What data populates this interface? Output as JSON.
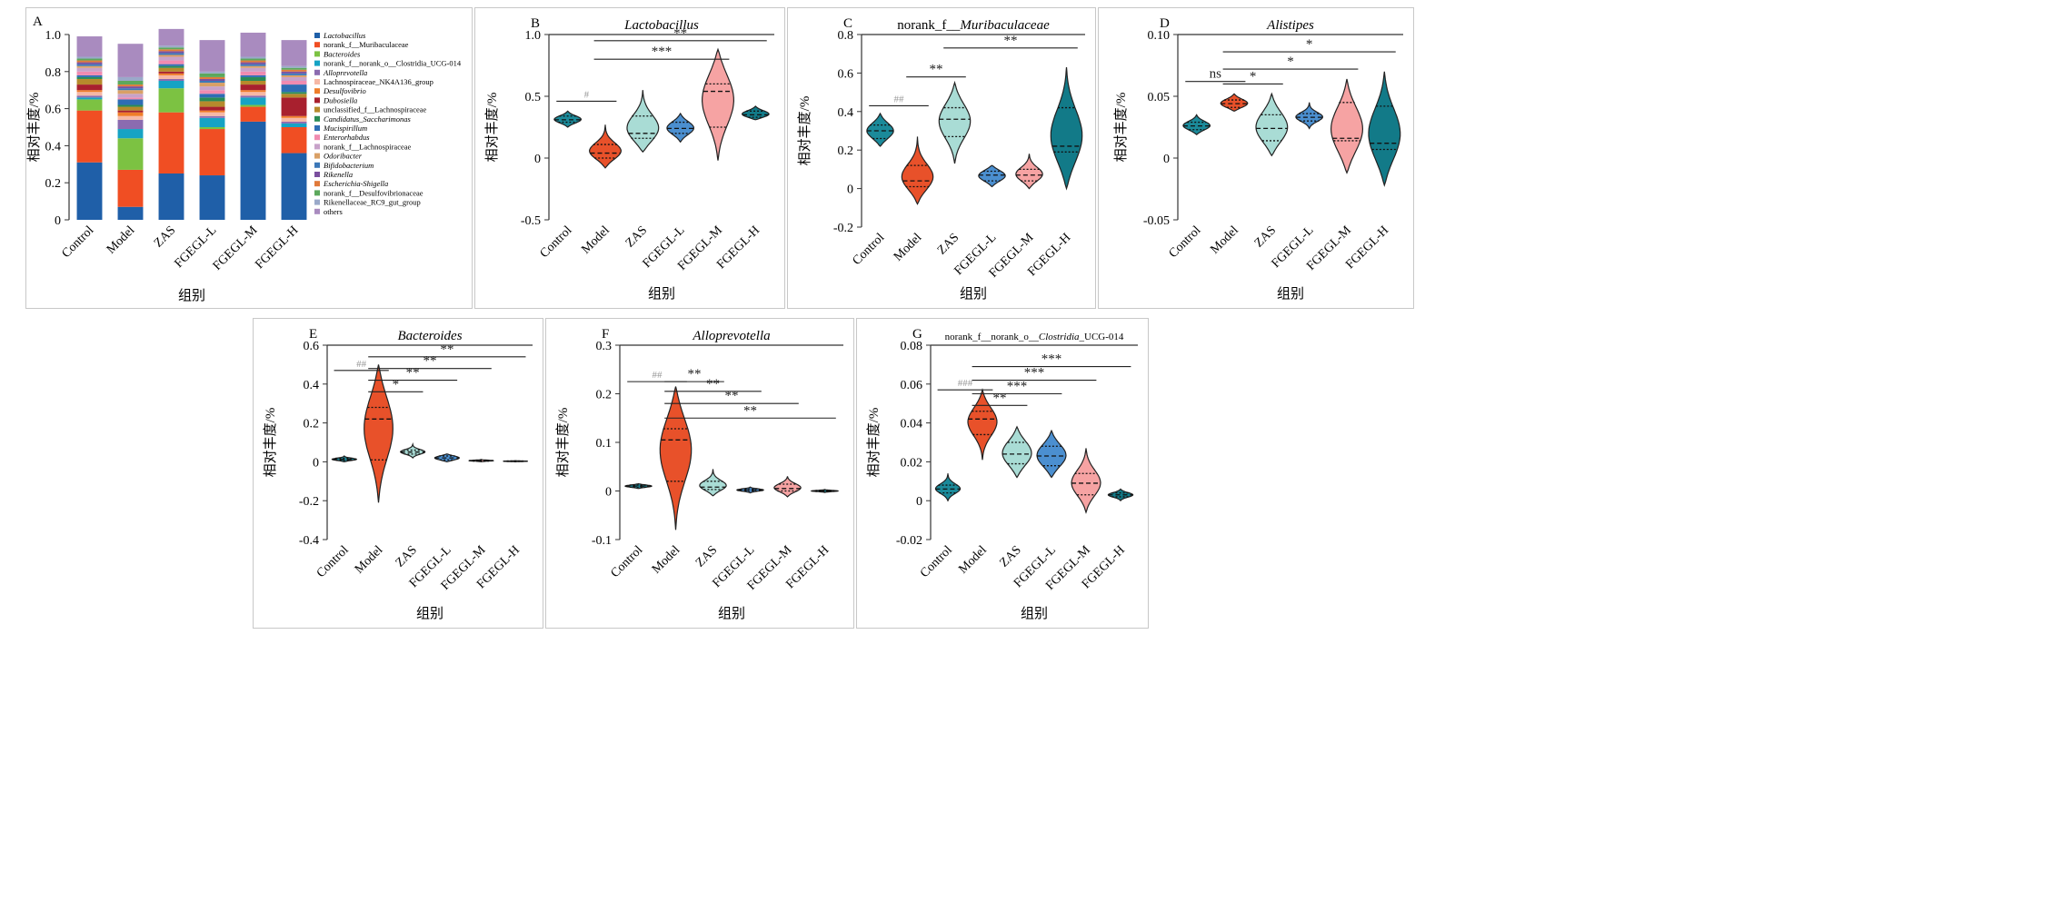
{
  "figure": {
    "groups": [
      "Control",
      "Model",
      "ZAS",
      "FGEGL-L",
      "FGEGL-M",
      "FGEGL-H"
    ],
    "xlabel": "组别",
    "ylabel": "相对丰度/%"
  },
  "chart_data": [
    {
      "panel": "A",
      "type": "bar",
      "stacked": true,
      "title": "",
      "xlabel": "组别",
      "ylabel": "相对丰度/%",
      "ylim": [
        0,
        1.0
      ],
      "yticks": [
        "0",
        "0.2",
        "0.4",
        "0.6",
        "0.8",
        "1.0"
      ],
      "categories": [
        "Control",
        "Model",
        "ZAS",
        "FGEGL-L",
        "FGEGL-M",
        "FGEGL-H"
      ],
      "legend_position": "right",
      "series": [
        {
          "name": "Lactobacillus",
          "italic": true,
          "color": "#1f5fa8",
          "values": [
            0.31,
            0.07,
            0.25,
            0.24,
            0.53,
            0.36
          ]
        },
        {
          "name": "norank_f__Muribaculaceae",
          "italic": false,
          "color": "#f04e23",
          "values": [
            0.28,
            0.2,
            0.33,
            0.25,
            0.08,
            0.14
          ]
        },
        {
          "name": "Bacteroides",
          "italic": true,
          "color": "#7cc242",
          "values": [
            0.06,
            0.17,
            0.13,
            0.01,
            0.01,
            0.0
          ]
        },
        {
          "name": "norank_f__norank_o__Clostridia_UCG-014",
          "italic": false,
          "color": "#16a3c4",
          "values": [
            0.01,
            0.05,
            0.04,
            0.05,
            0.04,
            0.02
          ]
        },
        {
          "name": "Alloprevotella",
          "italic": true,
          "color": "#8b6bb0",
          "values": [
            0.01,
            0.05,
            0.01,
            0.01,
            0.01,
            0.01
          ]
        },
        {
          "name": "Lachnospiraceae_NK4A136_group",
          "italic": false,
          "color": "#f6b8a6",
          "values": [
            0.02,
            0.02,
            0.02,
            0.02,
            0.02,
            0.02
          ]
        },
        {
          "name": "Desulfovibrio",
          "italic": true,
          "color": "#ef7d2a",
          "values": [
            0.01,
            0.02,
            0.01,
            0.01,
            0.01,
            0.01
          ]
        },
        {
          "name": "Dubosiella",
          "italic": true,
          "color": "#a8202e",
          "values": [
            0.03,
            0.01,
            0.01,
            0.02,
            0.03,
            0.1
          ]
        },
        {
          "name": "unclassified_f__Lachnospiraceae",
          "italic": false,
          "color": "#b68a2c",
          "values": [
            0.03,
            0.02,
            0.02,
            0.03,
            0.02,
            0.02
          ]
        },
        {
          "name": "Candidatus_Saccharimonas",
          "italic": true,
          "color": "#2a8b55",
          "values": [
            0.01,
            0.01,
            0.01,
            0.02,
            0.02,
            0.01
          ]
        },
        {
          "name": "Mucispirillum",
          "italic": true,
          "color": "#2e6db4",
          "values": [
            0.01,
            0.03,
            0.01,
            0.02,
            0.01,
            0.04
          ]
        },
        {
          "name": "Enterorhabdus",
          "italic": true,
          "color": "#f08bb0",
          "values": [
            0.02,
            0.01,
            0.02,
            0.02,
            0.02,
            0.02
          ]
        },
        {
          "name": "norank_f__Lachnospiraceae",
          "italic": false,
          "color": "#c7a2c9",
          "values": [
            0.02,
            0.02,
            0.02,
            0.02,
            0.02,
            0.02
          ]
        },
        {
          "name": "Odoribacter",
          "italic": true,
          "color": "#d9a066",
          "values": [
            0.01,
            0.02,
            0.01,
            0.02,
            0.01,
            0.01
          ]
        },
        {
          "name": "Bifidobacterium",
          "italic": true,
          "color": "#3c78b8",
          "values": [
            0.01,
            0.01,
            0.01,
            0.01,
            0.01,
            0.01
          ]
        },
        {
          "name": "Rikenella",
          "italic": true,
          "color": "#7a4f9e",
          "values": [
            0.01,
            0.01,
            0.01,
            0.01,
            0.01,
            0.01
          ]
        },
        {
          "name": "Escherichia-Shigella",
          "italic": true,
          "color": "#e07a3a",
          "values": [
            0.01,
            0.01,
            0.01,
            0.01,
            0.01,
            0.01
          ]
        },
        {
          "name": "norank_f__Desulfovibrionaceae",
          "italic": false,
          "color": "#5ca85c",
          "values": [
            0.01,
            0.02,
            0.01,
            0.02,
            0.01,
            0.01
          ]
        },
        {
          "name": "Rikenellaceae_RC9_gut_group",
          "italic": false,
          "color": "#9aa9c9",
          "values": [
            0.01,
            0.02,
            0.01,
            0.01,
            0.01,
            0.01
          ]
        },
        {
          "name": "others",
          "italic": false,
          "color": "#a98bbf",
          "values": [
            0.11,
            0.18,
            0.09,
            0.17,
            0.13,
            0.14
          ]
        }
      ]
    },
    {
      "panel": "B",
      "type": "violin",
      "title": "Lactobacillus",
      "title_italic": true,
      "xlabel": "组别",
      "ylabel": "相对丰度/%",
      "ylim": [
        -0.5,
        1.0
      ],
      "yticks": [
        "-0.5",
        "0",
        "0.5",
        "1.0"
      ],
      "categories": [
        "Control",
        "Model",
        "ZAS",
        "FGEGL-L",
        "FGEGL-M",
        "FGEGL-H"
      ],
      "groups": [
        {
          "min": 0.25,
          "q1": 0.29,
          "median": 0.31,
          "q3": 0.34,
          "max": 0.38,
          "color": "#1b8a9a"
        },
        {
          "min": -0.08,
          "q1": 0.0,
          "median": 0.04,
          "q3": 0.11,
          "max": 0.27,
          "color": "#e8512a"
        },
        {
          "min": 0.05,
          "q1": 0.16,
          "median": 0.2,
          "q3": 0.34,
          "max": 0.55,
          "color": "#a9dcd5"
        },
        {
          "min": 0.13,
          "q1": 0.2,
          "median": 0.24,
          "q3": 0.29,
          "max": 0.36,
          "color": "#4b8fd0"
        },
        {
          "min": -0.02,
          "q1": 0.25,
          "median": 0.54,
          "q3": 0.6,
          "max": 0.88,
          "color": "#f6a3a3"
        },
        {
          "min": 0.31,
          "q1": 0.33,
          "median": 0.35,
          "q3": 0.38,
          "max": 0.42,
          "color": "#127a88"
        }
      ],
      "annotations": [
        {
          "from": "Control",
          "to": "Model",
          "label": "#",
          "level": 0.46
        },
        {
          "from": "Model",
          "to": "FGEGL-M",
          "label": "***",
          "level": 0.8
        },
        {
          "from": "Model",
          "to": "FGEGL-H",
          "label": "**",
          "level": 0.95
        }
      ]
    },
    {
      "panel": "C",
      "type": "violin",
      "title": "norank_f__Muribaculaceae",
      "title_plain_prefix": "norank_f__",
      "title_italic_part": "Muribaculaceae",
      "xlabel": "组别",
      "ylabel": "相对丰度/%",
      "ylim": [
        -0.2,
        0.8
      ],
      "yticks": [
        "-0.2",
        "0",
        "0.2",
        "0.4",
        "0.6",
        "0.8"
      ],
      "categories": [
        "Control",
        "Model",
        "ZAS",
        "FGEGL-L",
        "FGEGL-M",
        "FGEGL-H"
      ],
      "groups": [
        {
          "min": 0.22,
          "q1": 0.26,
          "median": 0.3,
          "q3": 0.33,
          "max": 0.39,
          "color": "#1b8a9a"
        },
        {
          "min": -0.08,
          "q1": 0.01,
          "median": 0.04,
          "q3": 0.12,
          "max": 0.27,
          "color": "#e8512a"
        },
        {
          "min": 0.13,
          "q1": 0.27,
          "median": 0.36,
          "q3": 0.42,
          "max": 0.55,
          "color": "#a9dcd5"
        },
        {
          "min": 0.01,
          "q1": 0.04,
          "median": 0.07,
          "q3": 0.09,
          "max": 0.12,
          "color": "#4b8fd0"
        },
        {
          "min": 0.0,
          "q1": 0.04,
          "median": 0.07,
          "q3": 0.1,
          "max": 0.18,
          "color": "#f6a3a3"
        },
        {
          "min": 0.0,
          "q1": 0.19,
          "median": 0.22,
          "q3": 0.42,
          "max": 0.63,
          "color": "#127a88"
        }
      ],
      "annotations": [
        {
          "from": "Control",
          "to": "Model",
          "label": "##",
          "level": 0.43
        },
        {
          "from": "Model",
          "to": "ZAS",
          "label": "**",
          "level": 0.58
        },
        {
          "from": "ZAS",
          "to": "FGEGL-H",
          "label": "**",
          "level": 0.73
        }
      ]
    },
    {
      "panel": "D",
      "type": "violin",
      "title": "Alistipes",
      "title_italic": true,
      "xlabel": "组别",
      "ylabel": "相对丰度/%",
      "ylim": [
        -0.05,
        0.1
      ],
      "yticks": [
        "-0.05",
        "0",
        "0.05",
        "0.10"
      ],
      "categories": [
        "Control",
        "Model",
        "ZAS",
        "FGEGL-L",
        "FGEGL-M",
        "FGEGL-H"
      ],
      "groups": [
        {
          "min": 0.019,
          "q1": 0.023,
          "median": 0.026,
          "q3": 0.029,
          "max": 0.035,
          "color": "#1b8a9a"
        },
        {
          "min": 0.038,
          "q1": 0.041,
          "median": 0.044,
          "q3": 0.047,
          "max": 0.052,
          "color": "#e8512a"
        },
        {
          "min": 0.002,
          "q1": 0.014,
          "median": 0.024,
          "q3": 0.035,
          "max": 0.052,
          "color": "#a9dcd5"
        },
        {
          "min": 0.024,
          "q1": 0.03,
          "median": 0.033,
          "q3": 0.036,
          "max": 0.045,
          "color": "#4b8fd0"
        },
        {
          "min": -0.012,
          "q1": 0.014,
          "median": 0.016,
          "q3": 0.045,
          "max": 0.064,
          "color": "#f6a3a3"
        },
        {
          "min": -0.022,
          "q1": 0.007,
          "median": 0.012,
          "q3": 0.042,
          "max": 0.07,
          "color": "#127a88"
        }
      ],
      "annotations": [
        {
          "from": "Control",
          "to": "Model",
          "label": "ns",
          "level": 0.062
        },
        {
          "from": "Model",
          "to": "ZAS",
          "label": "*",
          "level": 0.06
        },
        {
          "from": "Model",
          "to": "FGEGL-M",
          "label": "*",
          "level": 0.072
        },
        {
          "from": "Model",
          "to": "FGEGL-H",
          "label": "*",
          "level": 0.086
        }
      ]
    },
    {
      "panel": "E",
      "type": "violin",
      "title": "Bacteroides",
      "title_italic": true,
      "xlabel": "组别",
      "ylabel": "相对丰度/%",
      "ylim": [
        -0.4,
        0.6
      ],
      "yticks": [
        "-0.4",
        "-0.2",
        "0",
        "0.2",
        "0.4",
        "0.6"
      ],
      "categories": [
        "Control",
        "Model",
        "ZAS",
        "FGEGL-L",
        "FGEGL-M",
        "FGEGL-H"
      ],
      "groups": [
        {
          "min": 0.0,
          "q1": 0.008,
          "median": 0.012,
          "q3": 0.018,
          "max": 0.03,
          "color": "#1b8a9a"
        },
        {
          "min": -0.21,
          "q1": 0.01,
          "median": 0.22,
          "q3": 0.28,
          "max": 0.5,
          "color": "#e8512a"
        },
        {
          "min": 0.02,
          "q1": 0.04,
          "median": 0.05,
          "q3": 0.06,
          "max": 0.09,
          "color": "#a9dcd5"
        },
        {
          "min": 0.0,
          "q1": 0.01,
          "median": 0.02,
          "q3": 0.03,
          "max": 0.04,
          "color": "#4b8fd0"
        },
        {
          "min": 0.0,
          "q1": 0.004,
          "median": 0.006,
          "q3": 0.008,
          "max": 0.012,
          "color": "#f6a3a3"
        },
        {
          "min": 0.0,
          "q1": 0.002,
          "median": 0.003,
          "q3": 0.004,
          "max": 0.006,
          "color": "#127a88"
        }
      ],
      "annotations": [
        {
          "from": "Control",
          "to": "Model",
          "label": "##",
          "level": 0.47
        },
        {
          "from": "Model",
          "to": "ZAS",
          "label": "*",
          "level": 0.36
        },
        {
          "from": "Model",
          "to": "FGEGL-L",
          "label": "**",
          "level": 0.42
        },
        {
          "from": "Model",
          "to": "FGEGL-M",
          "label": "**",
          "level": 0.48
        },
        {
          "from": "Model",
          "to": "FGEGL-H",
          "label": "**",
          "level": 0.54
        }
      ]
    },
    {
      "panel": "F",
      "type": "violin",
      "title": "Alloprevotella",
      "title_italic": true,
      "xlabel": "组别",
      "ylabel": "相对丰度/%",
      "ylim": [
        -0.1,
        0.3
      ],
      "yticks": [
        "-0.1",
        "0",
        "0.1",
        "0.2",
        "0.3"
      ],
      "categories": [
        "Control",
        "Model",
        "ZAS",
        "FGEGL-L",
        "FGEGL-M",
        "FGEGL-H"
      ],
      "groups": [
        {
          "min": 0.005,
          "q1": 0.008,
          "median": 0.01,
          "q3": 0.012,
          "max": 0.015,
          "color": "#1b8a9a"
        },
        {
          "min": -0.08,
          "q1": 0.02,
          "median": 0.105,
          "q3": 0.128,
          "max": 0.215,
          "color": "#e8512a"
        },
        {
          "min": -0.01,
          "q1": 0.003,
          "median": 0.008,
          "q3": 0.02,
          "max": 0.045,
          "color": "#a9dcd5"
        },
        {
          "min": -0.004,
          "q1": 0.0,
          "median": 0.002,
          "q3": 0.004,
          "max": 0.008,
          "color": "#4b8fd0"
        },
        {
          "min": -0.012,
          "q1": 0.0,
          "median": 0.005,
          "q3": 0.014,
          "max": 0.03,
          "color": "#f6a3a3"
        },
        {
          "min": -0.003,
          "q1": -0.001,
          "median": 0.0,
          "q3": 0.001,
          "max": 0.003,
          "color": "#127a88"
        }
      ],
      "annotations": [
        {
          "from": "Control",
          "to": "Model",
          "label": "##",
          "level": 0.225
        },
        {
          "from": "ZAS",
          "to": "Model",
          "label": "**",
          "level": 0.225
        },
        {
          "from": "Model",
          "to": "FGEGL-L",
          "label": "**",
          "level": 0.205
        },
        {
          "from": "Model",
          "to": "FGEGL-M",
          "label": "**",
          "level": 0.18
        },
        {
          "from": "Model",
          "to": "FGEGL-H",
          "label": "**",
          "level": 0.15
        }
      ]
    },
    {
      "panel": "G",
      "type": "violin",
      "title": "norank_f__norank_o__Clostridia_UCG-014",
      "title_plain_prefix": "norank_f__norank_o__",
      "title_italic_part": "Clostridia",
      "title_plain_suffix": "_UCG-014",
      "xlabel": "组别",
      "ylabel": "相对丰度/%",
      "ylim": [
        -0.02,
        0.08
      ],
      "yticks": [
        "-0.02",
        "0",
        "0.02",
        "0.04",
        "0.06",
        "0.08"
      ],
      "categories": [
        "Control",
        "Model",
        "ZAS",
        "FGEGL-L",
        "FGEGL-M",
        "FGEGL-H"
      ],
      "groups": [
        {
          "min": 0.0,
          "q1": 0.004,
          "median": 0.006,
          "q3": 0.008,
          "max": 0.014,
          "color": "#1b8a9a"
        },
        {
          "min": 0.021,
          "q1": 0.034,
          "median": 0.042,
          "q3": 0.046,
          "max": 0.057,
          "color": "#e8512a"
        },
        {
          "min": 0.012,
          "q1": 0.019,
          "median": 0.024,
          "q3": 0.03,
          "max": 0.038,
          "color": "#a9dcd5"
        },
        {
          "min": 0.012,
          "q1": 0.018,
          "median": 0.023,
          "q3": 0.028,
          "max": 0.036,
          "color": "#4b8fd0"
        },
        {
          "min": -0.006,
          "q1": 0.003,
          "median": 0.009,
          "q3": 0.014,
          "max": 0.027,
          "color": "#f6a3a3"
        },
        {
          "min": 0.0,
          "q1": 0.002,
          "median": 0.003,
          "q3": 0.004,
          "max": 0.006,
          "color": "#127a88"
        }
      ],
      "annotations": [
        {
          "from": "Control",
          "to": "Model",
          "label": "###",
          "level": 0.057
        },
        {
          "from": "Model",
          "to": "ZAS",
          "label": "**",
          "level": 0.049
        },
        {
          "from": "Model",
          "to": "FGEGL-L",
          "label": "***",
          "level": 0.055
        },
        {
          "from": "Model",
          "to": "FGEGL-M",
          "label": "***",
          "level": 0.062
        },
        {
          "from": "Model",
          "to": "FGEGL-H",
          "label": "***",
          "level": 0.069
        }
      ]
    }
  ]
}
